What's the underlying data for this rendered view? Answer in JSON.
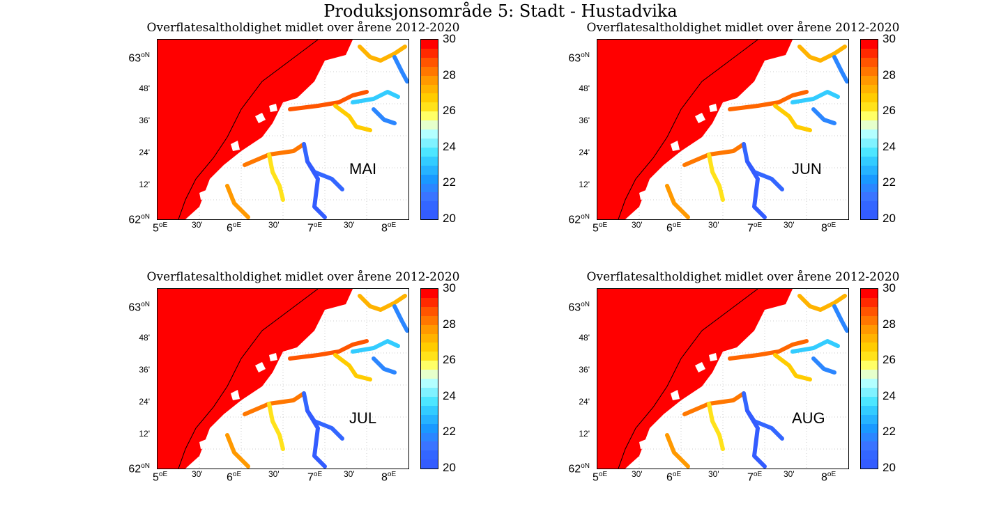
{
  "suptitle": "Produksjonsområde 5: Stadt - Hustadvika",
  "panels": [
    {
      "title": "Overflatesaltholdighet midlet over årene 2012-2020",
      "month": "MAI"
    },
    {
      "title": "Overflatesaltholdighet midlet over årene 2012-2020",
      "month": "JUN"
    },
    {
      "title": "Overflatesaltholdighet midlet over årene 2012-2020",
      "month": "JUL"
    },
    {
      "title": "Overflatesaltholdighet midlet over årene 2012-2020",
      "month": "AUG"
    }
  ],
  "axes": {
    "lat_ticks": [
      {
        "label": "63",
        "unit": "oN",
        "big": true
      },
      {
        "label": "48'",
        "unit": "",
        "big": false
      },
      {
        "label": "36'",
        "unit": "",
        "big": false
      },
      {
        "label": "24'",
        "unit": "",
        "big": false
      },
      {
        "label": "12'",
        "unit": "",
        "big": false
      },
      {
        "label": "62",
        "unit": "oN",
        "big": true
      }
    ],
    "lon_ticks": [
      {
        "label": "5",
        "unit": "oE",
        "big": true
      },
      {
        "label": "30'",
        "unit": "",
        "big": false
      },
      {
        "label": "6",
        "unit": "oE",
        "big": true
      },
      {
        "label": "30'",
        "unit": "",
        "big": false
      },
      {
        "label": "7",
        "unit": "oE",
        "big": true
      },
      {
        "label": "30'",
        "unit": "",
        "big": false
      },
      {
        "label": "8",
        "unit": "oE",
        "big": true
      }
    ]
  },
  "colorbar": {
    "ticks": [
      "30",
      "28",
      "26",
      "24",
      "22",
      "20"
    ],
    "min": 20,
    "max": 30,
    "colors": [
      "#ff0000",
      "#ff2a00",
      "#ff5500",
      "#ff7700",
      "#ff9900",
      "#ffb300",
      "#ffcc00",
      "#ffe21a",
      "#ffff66",
      "#e6ffcc",
      "#b3ffff",
      "#80f2ff",
      "#4de6ff",
      "#33ccff",
      "#26b3ff",
      "#1a99ff",
      "#2b86ff",
      "#3a74ff",
      "#3366ff",
      "#335cff"
    ]
  }
}
